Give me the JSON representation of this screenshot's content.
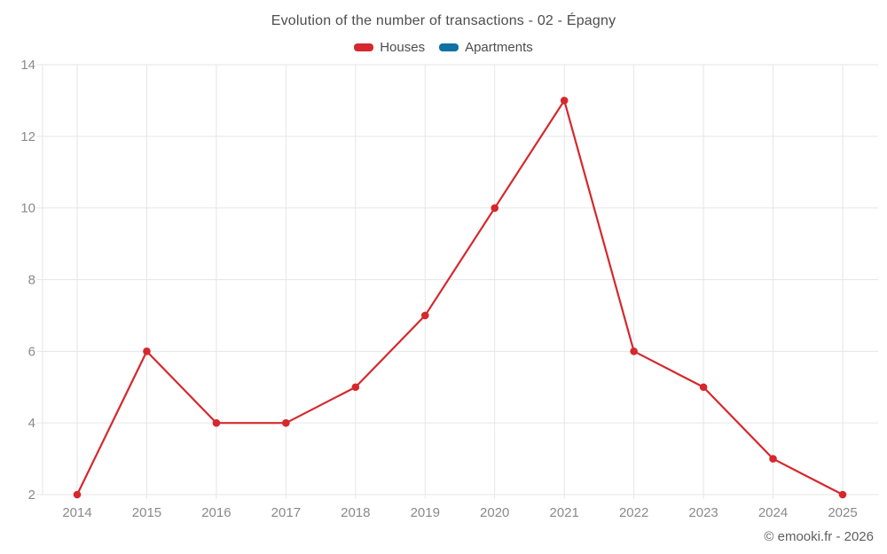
{
  "title": "Evolution of the number of transactions - 02 - Épagny",
  "footer": "© emooki.fr - 2026",
  "colors": {
    "houses": "#d5282d",
    "apartments": "#0e72a3",
    "grid": "#e6e6e6",
    "axis_text": "#8a8a8a",
    "title_text": "#4d4d4d",
    "footer_text": "#606060",
    "background": "#ffffff"
  },
  "chart_data": {
    "type": "line",
    "x": [
      2014,
      2015,
      2016,
      2017,
      2018,
      2019,
      2020,
      2021,
      2022,
      2023,
      2024,
      2025
    ],
    "series": [
      {
        "name": "Houses",
        "color_key": "houses",
        "values": [
          2,
          6,
          4,
          4,
          5,
          7,
          10,
          13,
          6,
          5,
          3,
          2
        ]
      },
      {
        "name": "Apartments",
        "color_key": "apartments",
        "values": []
      }
    ],
    "title": "Evolution of the number of transactions - 02 - Épagny",
    "xlabel": "",
    "ylabel": "",
    "ylim": [
      2,
      14
    ],
    "yticks": [
      2,
      4,
      6,
      8,
      10,
      12,
      14
    ],
    "grid": true,
    "legend_position": "top"
  }
}
